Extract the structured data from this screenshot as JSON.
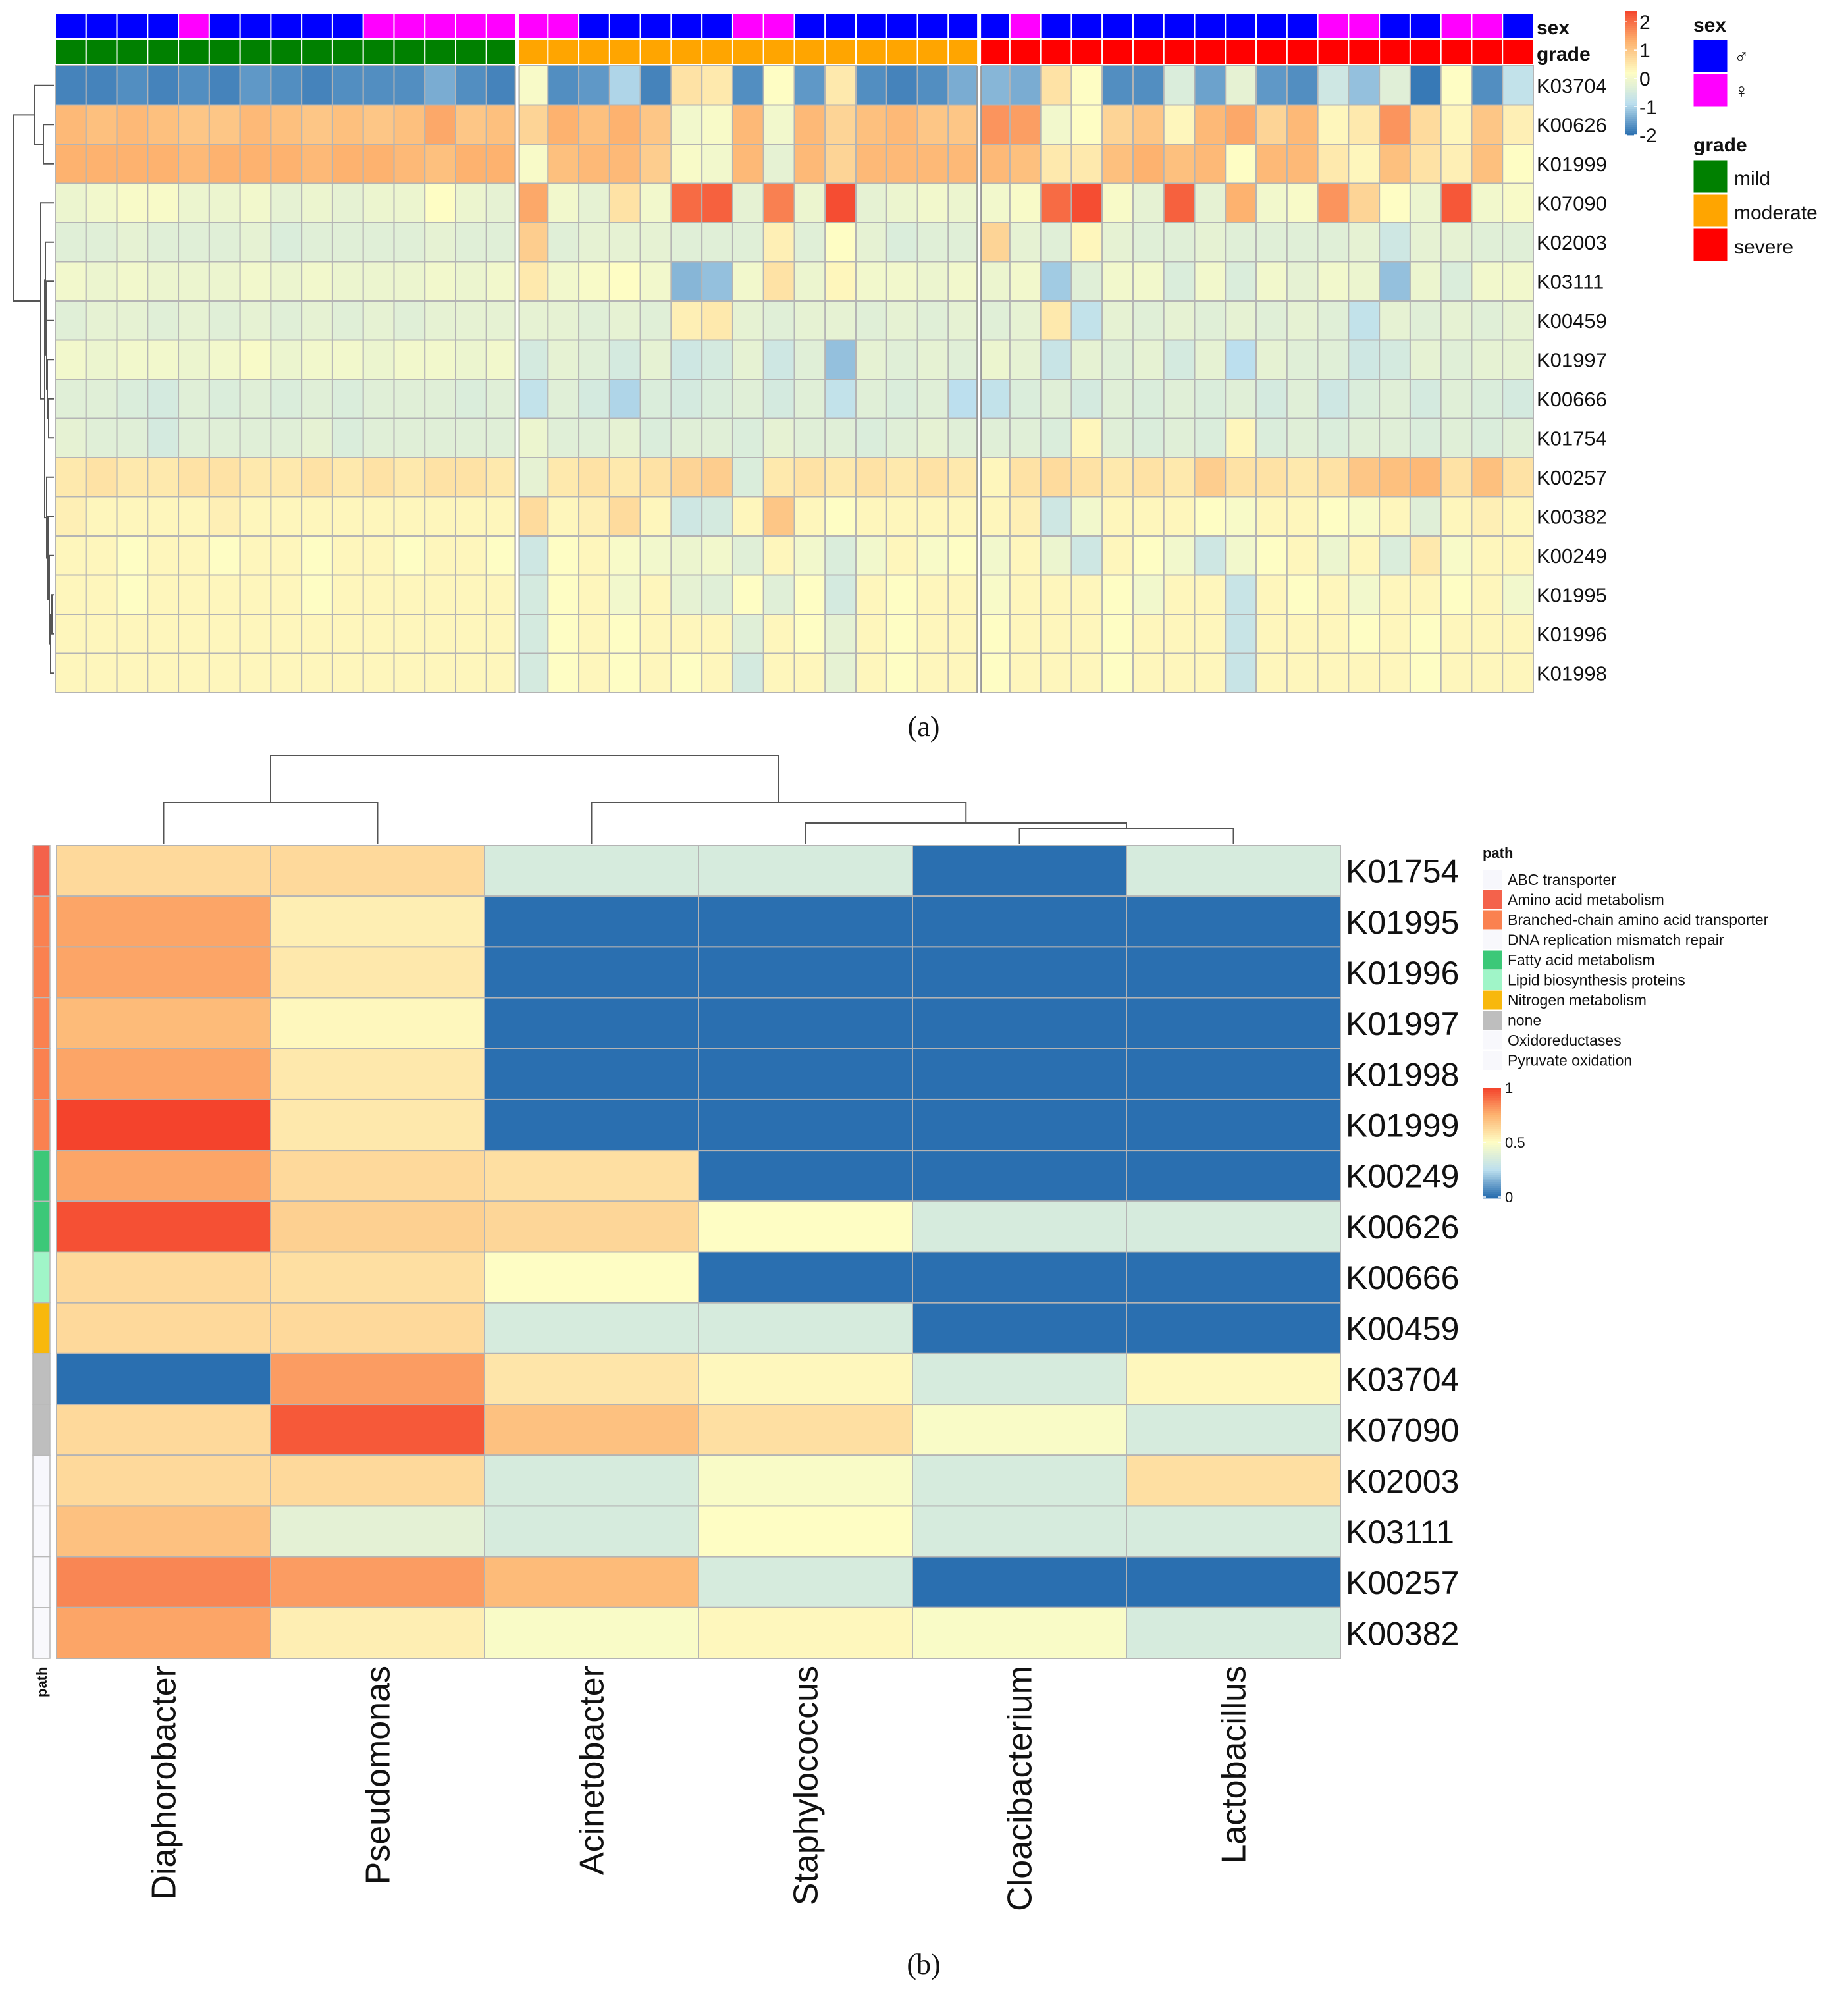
{
  "colors": {
    "male": "#0000ff",
    "female": "#ff00ff",
    "mild": "#008000",
    "moderate": "#ffa500",
    "severe": "#ff0000",
    "heat_low": "#2a6fb0",
    "heat_lowmid": "#bcdfee",
    "heat_mid": "#fefdc4",
    "heat_highmid": "#fdb26f",
    "heat_high": "#f4432c",
    "grid": "#b4b4b4",
    "dendrogram": "#555555"
  },
  "chart_data": [
    {
      "type": "heatmap",
      "panel_label": "(a)",
      "annotation_titles": {
        "sex": "sex",
        "grade": "grade"
      },
      "legend": {
        "sex_title": "sex",
        "sex_entries": [
          {
            "key": "m",
            "label": "♂"
          },
          {
            "key": "f",
            "label": "♀"
          }
        ],
        "grade_title": "grade",
        "grade_entries": [
          {
            "key": "mild",
            "label": "mild"
          },
          {
            "key": "moderate",
            "label": "moderate"
          },
          {
            "key": "severe",
            "label": "severe"
          }
        ],
        "scale_ticks": [
          {
            "v": 2,
            "label": "2"
          },
          {
            "v": 1,
            "label": "1"
          },
          {
            "v": 0,
            "label": "0"
          },
          {
            "v": -1,
            "label": "-1"
          },
          {
            "v": -2,
            "label": "-2"
          }
        ],
        "scale_min": -2,
        "scale_max": 2.4
      },
      "sex": [
        "m",
        "m",
        "m",
        "m",
        "f",
        "m",
        "m",
        "m",
        "m",
        "m",
        "f",
        "f",
        "f",
        "f",
        "f",
        "f",
        "f",
        "m",
        "m",
        "m",
        "m",
        "m",
        "f",
        "f",
        "m",
        "m",
        "m",
        "m",
        "m",
        "m",
        "m",
        "f",
        "m",
        "m",
        "m",
        "m",
        "m",
        "m",
        "m",
        "m",
        "m",
        "f",
        "f",
        "m",
        "m",
        "f",
        "f",
        "m"
      ],
      "grade": [
        "mild",
        "mild",
        "mild",
        "mild",
        "mild",
        "mild",
        "mild",
        "mild",
        "mild",
        "mild",
        "mild",
        "mild",
        "mild",
        "mild",
        "mild",
        "moderate",
        "moderate",
        "moderate",
        "moderate",
        "moderate",
        "moderate",
        "moderate",
        "moderate",
        "moderate",
        "moderate",
        "moderate",
        "moderate",
        "moderate",
        "moderate",
        "moderate",
        "severe",
        "severe",
        "severe",
        "severe",
        "severe",
        "severe",
        "severe",
        "severe",
        "severe",
        "severe",
        "severe",
        "severe",
        "severe",
        "severe",
        "severe",
        "severe",
        "severe",
        "severe"
      ],
      "rows": [
        "K03704",
        "K00626",
        "K01999",
        "K07090",
        "K02003",
        "K03111",
        "K00459",
        "K01997",
        "K00666",
        "K01754",
        "K00257",
        "K00382",
        "K00249",
        "K01995",
        "K01996",
        "K01998"
      ],
      "values": [
        [
          -1.8,
          -1.8,
          -1.7,
          -1.8,
          -1.7,
          -1.8,
          -1.6,
          -1.7,
          -1.8,
          -1.7,
          -1.7,
          -1.7,
          -1.4,
          -1.7,
          -1.8,
          0.1,
          -1.7,
          -1.6,
          -1.0,
          -1.8,
          0.6,
          0.5,
          -1.7,
          0.2,
          -1.6,
          0.5,
          -1.7,
          -1.8,
          -1.7,
          -1.4,
          -1.3,
          -1.4,
          0.6,
          0.2,
          -1.7,
          -1.7,
          -0.4,
          -1.5,
          -0.2,
          -1.6,
          -1.7,
          -0.6,
          -1.2,
          -0.3,
          -1.9,
          0.2,
          -1.7,
          -0.8
        ],
        [
          1.2,
          1.1,
          1.2,
          1.1,
          1.0,
          1.0,
          1.2,
          1.1,
          1.0,
          1.1,
          1.0,
          1.1,
          1.4,
          1.0,
          1.1,
          0.8,
          1.3,
          1.1,
          1.3,
          1.0,
          0.0,
          0.1,
          1.2,
          0.0,
          1.2,
          0.8,
          1.1,
          1.2,
          1.0,
          1.0,
          1.6,
          1.5,
          0.0,
          0.2,
          0.8,
          1.0,
          0.3,
          1.2,
          1.4,
          0.8,
          1.2,
          0.3,
          0.5,
          1.6,
          0.7,
          0.3,
          1.0,
          0.4
        ],
        [
          1.3,
          1.3,
          1.3,
          1.3,
          1.2,
          1.3,
          1.3,
          1.3,
          1.2,
          1.3,
          1.3,
          1.2,
          1.1,
          1.3,
          1.3,
          0.1,
          1.1,
          1.2,
          1.2,
          0.9,
          0.1,
          0.0,
          1.2,
          -0.2,
          1.2,
          0.8,
          1.2,
          1.2,
          1.2,
          1.2,
          1.2,
          1.1,
          0.5,
          0.5,
          1.1,
          1.3,
          1.1,
          1.2,
          0.2,
          1.2,
          1.2,
          0.5,
          0.3,
          1.1,
          0.6,
          0.4,
          1.1,
          0.2
        ],
        [
          -0.1,
          0.0,
          0.1,
          0.1,
          -0.1,
          -0.1,
          0.0,
          -0.2,
          -0.1,
          -0.2,
          -0.1,
          -0.1,
          0.2,
          -0.1,
          -0.2,
          1.4,
          0.0,
          -0.2,
          0.6,
          0.0,
          2.0,
          2.1,
          -0.2,
          1.8,
          -0.1,
          2.3,
          -0.2,
          -0.1,
          0.0,
          -0.1,
          0.0,
          0.1,
          2.0,
          2.3,
          0.1,
          -0.2,
          2.1,
          -0.2,
          1.3,
          0.0,
          0.1,
          1.6,
          0.8,
          0.2,
          -0.1,
          2.2,
          0.0,
          0.1
        ],
        [
          -0.3,
          -0.3,
          -0.2,
          -0.3,
          -0.3,
          -0.3,
          -0.2,
          -0.4,
          -0.3,
          -0.3,
          -0.3,
          -0.3,
          -0.2,
          -0.3,
          -0.3,
          0.9,
          -0.3,
          -0.2,
          -0.2,
          -0.2,
          -0.3,
          -0.3,
          -0.3,
          0.4,
          -0.3,
          0.2,
          -0.2,
          -0.4,
          -0.3,
          -0.3,
          0.8,
          -0.2,
          -0.3,
          0.3,
          -0.2,
          -0.3,
          -0.3,
          -0.2,
          -0.3,
          -0.3,
          -0.3,
          -0.3,
          -0.2,
          -0.6,
          -0.2,
          -0.2,
          -0.3,
          -0.3
        ],
        [
          0.0,
          -0.1,
          0.0,
          -0.1,
          -0.1,
          -0.1,
          0.0,
          -0.1,
          0.0,
          -0.1,
          -0.1,
          -0.1,
          0.0,
          -0.1,
          0.0,
          0.5,
          0.0,
          0.1,
          0.2,
          0.0,
          -1.3,
          -1.2,
          0.0,
          0.6,
          -0.1,
          0.3,
          0.0,
          0.0,
          -0.1,
          0.0,
          -0.1,
          0.0,
          -1.1,
          -0.3,
          0.0,
          0.0,
          -0.4,
          0.0,
          -0.4,
          0.0,
          -0.2,
          0.0,
          -0.1,
          -1.2,
          -0.1,
          -0.4,
          0.0,
          0.0
        ],
        [
          -0.3,
          -0.2,
          -0.2,
          -0.3,
          -0.2,
          -0.3,
          -0.2,
          -0.3,
          -0.2,
          -0.3,
          -0.2,
          -0.3,
          -0.2,
          -0.2,
          -0.2,
          -0.2,
          -0.2,
          -0.3,
          -0.2,
          -0.3,
          0.4,
          0.5,
          -0.2,
          -0.3,
          -0.2,
          -0.2,
          -0.3,
          -0.2,
          -0.3,
          -0.2,
          -0.3,
          -0.2,
          0.5,
          -0.8,
          -0.2,
          -0.3,
          -0.2,
          -0.3,
          -0.2,
          -0.3,
          -0.2,
          -0.3,
          -0.8,
          -0.2,
          -0.3,
          -0.2,
          -0.3,
          -0.2
        ],
        [
          0.0,
          -0.1,
          0.0,
          0.0,
          -0.1,
          0.0,
          0.1,
          -0.1,
          0.0,
          0.0,
          -0.1,
          0.0,
          0.0,
          -0.1,
          0.0,
          -0.5,
          -0.2,
          -0.3,
          -0.5,
          -0.2,
          -0.6,
          -0.5,
          -0.2,
          -0.6,
          -0.3,
          -1.2,
          -0.2,
          -0.3,
          -0.2,
          -0.3,
          -0.1,
          -0.2,
          -0.7,
          -0.2,
          -0.3,
          -0.2,
          -0.5,
          -0.2,
          -0.9,
          -0.2,
          -0.3,
          -0.3,
          -0.6,
          -0.5,
          -0.2,
          -0.3,
          -0.2,
          -0.2
        ],
        [
          -0.3,
          -0.3,
          -0.4,
          -0.5,
          -0.3,
          -0.4,
          -0.3,
          -0.4,
          -0.3,
          -0.4,
          -0.3,
          -0.3,
          -0.3,
          -0.4,
          -0.3,
          -0.8,
          -0.3,
          -0.5,
          -1.0,
          -0.4,
          -0.5,
          -0.4,
          -0.3,
          -0.5,
          -0.3,
          -0.8,
          -0.3,
          -0.4,
          -0.3,
          -0.9,
          -0.8,
          -0.4,
          -0.3,
          -0.5,
          -0.3,
          -0.4,
          -0.3,
          -0.4,
          -0.3,
          -0.5,
          -0.3,
          -0.6,
          -0.4,
          -0.3,
          -0.5,
          -0.3,
          -0.4,
          -0.5
        ],
        [
          -0.2,
          -0.3,
          -0.3,
          -0.5,
          -0.3,
          -0.3,
          -0.3,
          -0.3,
          -0.2,
          -0.4,
          -0.3,
          -0.3,
          -0.3,
          -0.3,
          -0.3,
          -0.1,
          -0.3,
          -0.3,
          -0.2,
          -0.4,
          -0.3,
          -0.3,
          -0.4,
          -0.2,
          -0.3,
          -0.3,
          -0.4,
          -0.3,
          -0.2,
          -0.3,
          -0.3,
          -0.3,
          -0.4,
          0.3,
          -0.3,
          -0.4,
          -0.3,
          -0.4,
          0.3,
          -0.4,
          -0.3,
          -0.4,
          -0.3,
          -0.3,
          -0.4,
          -0.3,
          -0.4,
          -0.3
        ],
        [
          0.5,
          0.6,
          0.5,
          0.5,
          0.6,
          0.6,
          0.5,
          0.5,
          0.6,
          0.5,
          0.6,
          0.5,
          0.6,
          0.6,
          0.5,
          -0.2,
          0.5,
          0.6,
          0.5,
          0.6,
          0.8,
          0.9,
          -0.4,
          0.5,
          0.6,
          0.5,
          0.6,
          0.5,
          0.6,
          0.5,
          0.3,
          0.6,
          0.7,
          0.6,
          0.5,
          0.6,
          0.5,
          0.9,
          0.6,
          0.6,
          0.5,
          0.6,
          1.0,
          1.1,
          1.2,
          0.6,
          1.1,
          0.6
        ],
        [
          0.4,
          0.3,
          0.3,
          0.3,
          0.3,
          0.4,
          0.3,
          0.3,
          0.3,
          0.3,
          0.3,
          0.3,
          0.3,
          0.3,
          0.3,
          0.7,
          0.3,
          0.4,
          0.7,
          0.3,
          -0.6,
          -0.5,
          0.3,
          1.0,
          0.3,
          0.2,
          0.3,
          0.3,
          0.3,
          0.3,
          0.3,
          0.4,
          -0.6,
          0.0,
          0.3,
          0.3,
          0.3,
          0.2,
          0.1,
          0.3,
          0.3,
          0.2,
          0.1,
          0.3,
          -0.3,
          0.3,
          0.4,
          0.3
        ],
        [
          0.3,
          0.3,
          0.2,
          0.3,
          0.3,
          0.2,
          0.3,
          0.3,
          0.2,
          0.3,
          0.3,
          0.2,
          0.3,
          0.3,
          0.2,
          -0.6,
          0.2,
          0.3,
          0.1,
          0.0,
          -0.1,
          0.0,
          -0.3,
          0.3,
          0.0,
          -0.4,
          0.0,
          0.3,
          0.1,
          0.2,
          0.0,
          0.3,
          -0.1,
          -0.6,
          0.3,
          0.2,
          0.0,
          -0.6,
          0.0,
          0.2,
          0.3,
          -0.1,
          0.3,
          -0.4,
          0.5,
          0.1,
          0.3,
          0.3
        ],
        [
          0.3,
          0.3,
          0.2,
          0.3,
          0.3,
          0.3,
          0.3,
          0.3,
          0.2,
          0.3,
          0.3,
          0.3,
          0.3,
          0.3,
          0.3,
          -0.5,
          0.2,
          0.3,
          0.0,
          0.3,
          -0.2,
          -0.3,
          0.2,
          -0.3,
          0.2,
          -0.5,
          0.3,
          0.2,
          0.3,
          0.3,
          0.1,
          0.3,
          0.3,
          0.3,
          0.2,
          0.0,
          0.3,
          0.3,
          -0.7,
          0.3,
          0.2,
          0.3,
          0.0,
          0.3,
          0.3,
          0.2,
          0.3,
          0.0
        ],
        [
          0.3,
          0.3,
          0.3,
          0.3,
          0.3,
          0.3,
          0.3,
          0.3,
          0.3,
          0.3,
          0.3,
          0.3,
          0.3,
          0.3,
          0.3,
          -0.5,
          0.2,
          0.3,
          0.2,
          0.3,
          0.3,
          0.3,
          -0.3,
          0.3,
          0.2,
          -0.2,
          0.3,
          0.2,
          0.3,
          0.3,
          0.2,
          0.3,
          0.3,
          0.3,
          0.2,
          0.3,
          0.3,
          0.3,
          -0.7,
          0.3,
          0.3,
          0.3,
          0.2,
          0.3,
          0.2,
          0.3,
          0.3,
          0.3
        ],
        [
          0.3,
          0.3,
          0.3,
          0.3,
          0.3,
          0.3,
          0.3,
          0.3,
          0.3,
          0.3,
          0.3,
          0.3,
          0.3,
          0.3,
          0.3,
          -0.5,
          0.2,
          0.3,
          0.2,
          0.3,
          0.2,
          0.3,
          -0.5,
          0.3,
          0.3,
          -0.2,
          0.3,
          0.2,
          0.3,
          0.3,
          0.2,
          0.3,
          0.3,
          0.3,
          0.2,
          0.3,
          0.3,
          0.3,
          -0.7,
          0.3,
          0.3,
          0.3,
          0.3,
          0.3,
          0.2,
          0.3,
          0.3,
          0.3
        ]
      ]
    },
    {
      "type": "heatmap",
      "panel_label": "(b)",
      "columns": [
        "Diaphorobacter",
        "Pseudomonas",
        "Acinetobacter",
        "Staphylococcus",
        "Cloacibacterium",
        "Lactobacillus"
      ],
      "rows": [
        "K01754",
        "K01995",
        "K01996",
        "K01997",
        "K01998",
        "K01999",
        "K00249",
        "K00626",
        "K00666",
        "K00459",
        "K03704",
        "K07090",
        "K02003",
        "K03111",
        "K00257",
        "K00382"
      ],
      "row_path": [
        "Amino acid metabolism",
        "Branched-chain amino acid transporter",
        "Branched-chain amino acid transporter",
        "Branched-chain amino acid transporter",
        "Branched-chain amino acid transporter",
        "Branched-chain amino acid transporter",
        "Fatty acid metabolism",
        "Fatty acid metabolism",
        "Lipid biosynthesis proteins",
        "Nitrogen metabolism",
        "none",
        "none",
        "ABC transporter",
        "DNA replication mismatch repair",
        "Oxidoreductases",
        "Pyruvate oxidation"
      ],
      "values": [
        [
          0.62,
          0.62,
          0.35,
          0.35,
          0.0,
          0.35
        ],
        [
          0.78,
          0.55,
          0.0,
          0.0,
          0.0,
          0.0
        ],
        [
          0.78,
          0.57,
          0.0,
          0.0,
          0.0,
          0.0
        ],
        [
          0.72,
          0.52,
          0.0,
          0.0,
          0.0,
          0.0
        ],
        [
          0.78,
          0.57,
          0.0,
          0.0,
          0.0,
          0.0
        ],
        [
          1.0,
          0.57,
          0.0,
          0.0,
          0.0,
          0.0
        ],
        [
          0.78,
          0.62,
          0.6,
          0.0,
          0.0,
          0.0
        ],
        [
          0.97,
          0.65,
          0.63,
          0.5,
          0.35,
          0.35
        ],
        [
          0.62,
          0.6,
          0.5,
          0.0,
          0.0,
          0.0
        ],
        [
          0.62,
          0.62,
          0.35,
          0.35,
          0.0,
          0.0
        ],
        [
          0.0,
          0.8,
          0.58,
          0.52,
          0.35,
          0.52
        ],
        [
          0.62,
          0.95,
          0.7,
          0.6,
          0.48,
          0.35
        ],
        [
          0.62,
          0.62,
          0.35,
          0.48,
          0.35,
          0.6
        ],
        [
          0.7,
          0.4,
          0.35,
          0.5,
          0.35,
          0.35
        ],
        [
          0.85,
          0.8,
          0.72,
          0.35,
          0.0,
          0.0
        ],
        [
          0.78,
          0.55,
          0.48,
          0.52,
          0.48,
          0.35
        ]
      ],
      "legend": {
        "path_title": "path",
        "path_entries": [
          {
            "label": "ABC transporter",
            "color": "#f7f7fc"
          },
          {
            "label": "Amino acid metabolism",
            "color": "#f4624b"
          },
          {
            "label": "Branched-chain amino acid transporter",
            "color": "#fa8150"
          },
          {
            "label": "DNA replication mismatch repair",
            "color": "#f8f8fc"
          },
          {
            "label": "Fatty acid metabolism",
            "color": "#3cc878"
          },
          {
            "label": "Lipid biosynthesis proteins",
            "color": "#a0f5c8"
          },
          {
            "label": "Nitrogen metabolism",
            "color": "#f8b80c"
          },
          {
            "label": "none",
            "color": "#bebebe"
          },
          {
            "label": "Oxidoreductases",
            "color": "#f8f8fc"
          },
          {
            "label": "Pyruvate oxidation",
            "color": "#f8f8fc"
          }
        ],
        "scale_ticks": [
          {
            "v": 1,
            "label": "1"
          },
          {
            "v": 0.5,
            "label": "0.5"
          },
          {
            "v": 0,
            "label": "0"
          }
        ],
        "annotation_label": "path"
      }
    }
  ]
}
